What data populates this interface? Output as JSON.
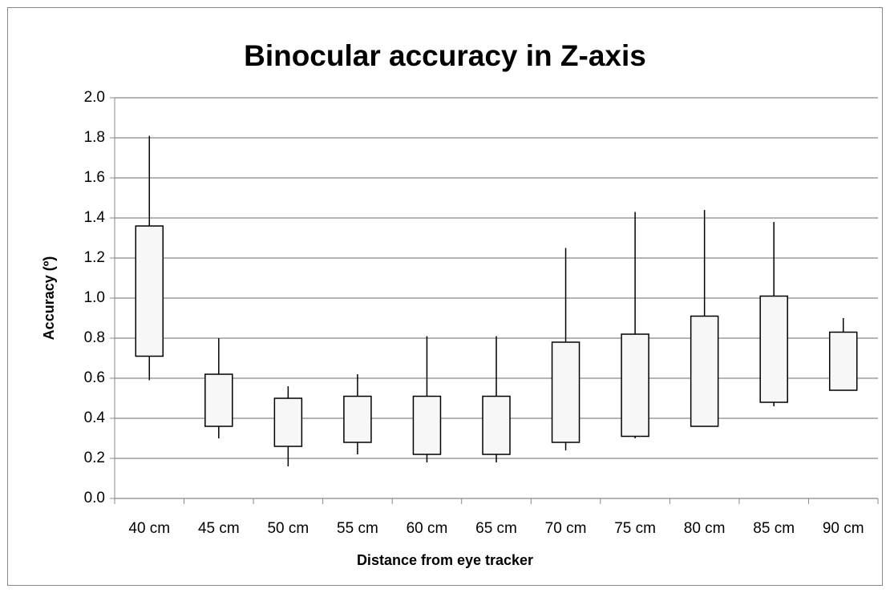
{
  "chart_data": {
    "type": "candlestick",
    "title": "Binocular accuracy in Z-axis",
    "x_label": "Distance from eye tracker",
    "y_label": "Accuracy (º)",
    "categories": [
      "40 cm",
      "45 cm",
      "50 cm",
      "55 cm",
      "60 cm",
      "65 cm",
      "70 cm",
      "75 cm",
      "80 cm",
      "85 cm",
      "90 cm"
    ],
    "low": [
      0.59,
      0.3,
      0.16,
      0.22,
      0.18,
      0.18,
      0.24,
      0.3,
      0.36,
      0.46,
      0.54
    ],
    "q1": [
      0.71,
      0.36,
      0.26,
      0.28,
      0.22,
      0.22,
      0.28,
      0.31,
      0.36,
      0.48,
      0.54
    ],
    "q3": [
      1.36,
      0.62,
      0.5,
      0.51,
      0.51,
      0.51,
      0.78,
      0.82,
      0.91,
      1.01,
      0.83
    ],
    "high": [
      1.81,
      0.8,
      0.56,
      0.62,
      0.81,
      0.81,
      1.25,
      1.43,
      1.44,
      1.38,
      0.9
    ],
    "color": "#f7f7f7",
    "ylim": [
      0,
      2
    ],
    "yticks": [
      {
        "value": 0,
        "label": "0.0"
      },
      0.2,
      0.4,
      0.6,
      0.8,
      {
        "value": 1,
        "label": "1.0"
      },
      1.2,
      1.4,
      1.6,
      1.8,
      {
        "value": 2,
        "label": "2.0"
      }
    ],
    "grid": true
  }
}
